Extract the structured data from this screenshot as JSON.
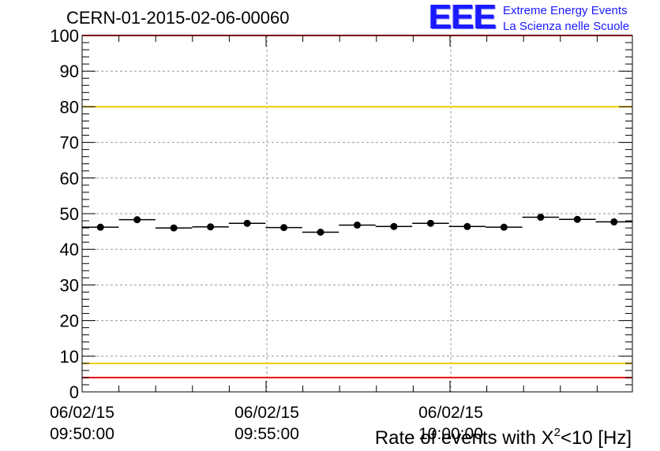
{
  "title": "CERN-01-2015-02-06-00060",
  "logo": {
    "mark": "EEE",
    "line1": "Extreme Energy Events",
    "line2": "La Scienza nelle Scuole"
  },
  "colors": {
    "limit_red": "#ee1111",
    "limit_yellow": "#f2cc00",
    "data": "#000000",
    "grid": "#999999"
  },
  "chart_data": {
    "type": "scatter",
    "xlabel_pre": "Rate of events with X",
    "xlabel_sup": "2",
    "xlabel_post": "<10 [Hz]",
    "ylim": [
      0,
      100
    ],
    "yticks": [
      "0",
      "10",
      "20",
      "30",
      "40",
      "50",
      "60",
      "70",
      "80",
      "90",
      "100"
    ],
    "xticks": [
      {
        "date": "06/02/15",
        "time": "09:50:00"
      },
      {
        "date": "06/02/15",
        "time": "09:55:00"
      },
      {
        "date": "06/02/15",
        "time": "10:00:00"
      }
    ],
    "grid": true,
    "reference_lines": [
      {
        "y": 100,
        "color": "red"
      },
      {
        "y": 80,
        "color": "yellow"
      },
      {
        "y": 8,
        "color": "yellow"
      },
      {
        "y": 4,
        "color": "red"
      }
    ],
    "points": [
      46.2,
      48.3,
      46.0,
      46.3,
      47.3,
      46.1,
      44.8,
      46.8,
      46.4,
      47.3,
      46.4,
      46.2,
      49.0,
      48.4,
      47.7
    ]
  }
}
